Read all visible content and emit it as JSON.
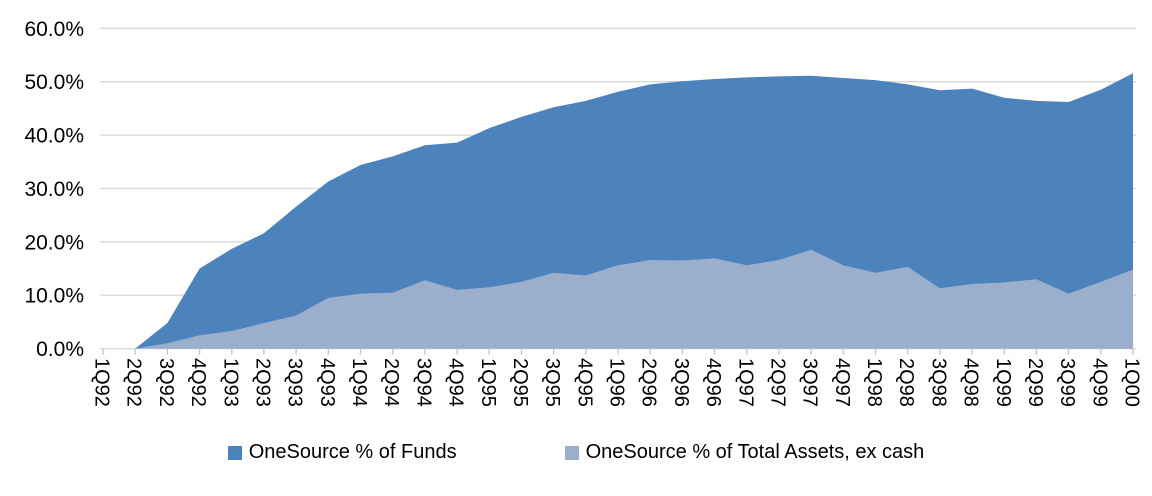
{
  "chart_data": {
    "type": "area",
    "title": "",
    "xlabel": "",
    "ylabel": "",
    "categories": [
      "1Q92",
      "2Q92",
      "3Q92",
      "4Q92",
      "1Q93",
      "2Q93",
      "3Q93",
      "4Q93",
      "1Q94",
      "2Q94",
      "3Q94",
      "4Q94",
      "1Q95",
      "2Q95",
      "3Q95",
      "4Q95",
      "1Q96",
      "2Q96",
      "3Q96",
      "4Q96",
      "1Q97",
      "2Q97",
      "3Q97",
      "4Q97",
      "1Q98",
      "2Q98",
      "3Q98",
      "4Q98",
      "1Q99",
      "2Q99",
      "3Q99",
      "4Q99",
      "1Q00"
    ],
    "series": [
      {
        "name": "OneSource % of Funds",
        "color": "#4D83BD",
        "values": [
          0,
          0,
          4.8,
          15.0,
          18.7,
          21.6,
          26.6,
          31.3,
          34.4,
          36.0,
          38.1,
          38.6,
          41.3,
          43.4,
          45.2,
          46.4,
          48.1,
          49.5,
          50.1,
          50.5,
          50.8,
          51.0,
          51.1,
          50.7,
          50.3,
          49.5,
          48.4,
          48.7,
          47.0,
          46.4,
          46.2,
          48.5,
          51.6
        ]
      },
      {
        "name": "OneSource % of Total Assets, ex cash",
        "color": "#9BAFCD",
        "values": [
          0,
          0,
          1.0,
          2.5,
          3.3,
          4.8,
          6.2,
          9.5,
          10.3,
          10.5,
          12.8,
          11.0,
          11.5,
          12.5,
          14.2,
          13.7,
          15.6,
          16.6,
          16.5,
          16.9,
          15.6,
          16.6,
          18.5,
          15.6,
          14.2,
          15.3,
          11.3,
          12.1,
          12.4,
          13.0,
          10.3,
          12.5,
          14.8
        ]
      }
    ],
    "ylim": [
      0,
      60
    ],
    "ytick_step": 10,
    "ytick_labels": [
      "0.0%",
      "10.0%",
      "20.0%",
      "30.0%",
      "40.0%",
      "50.0%",
      "60.0%"
    ],
    "grid": "horizontal",
    "grid_color": "#D9D9D9",
    "tick_color": "#C3C3C3",
    "legend_position": "bottom",
    "areas_overlapped_not_stacked": true
  },
  "legend": {
    "items": [
      {
        "label": "OneSource % of Funds",
        "color": "#4D83BD"
      },
      {
        "label": "OneSource % of Total Assets, ex cash",
        "color": "#9BAFCD"
      }
    ]
  }
}
